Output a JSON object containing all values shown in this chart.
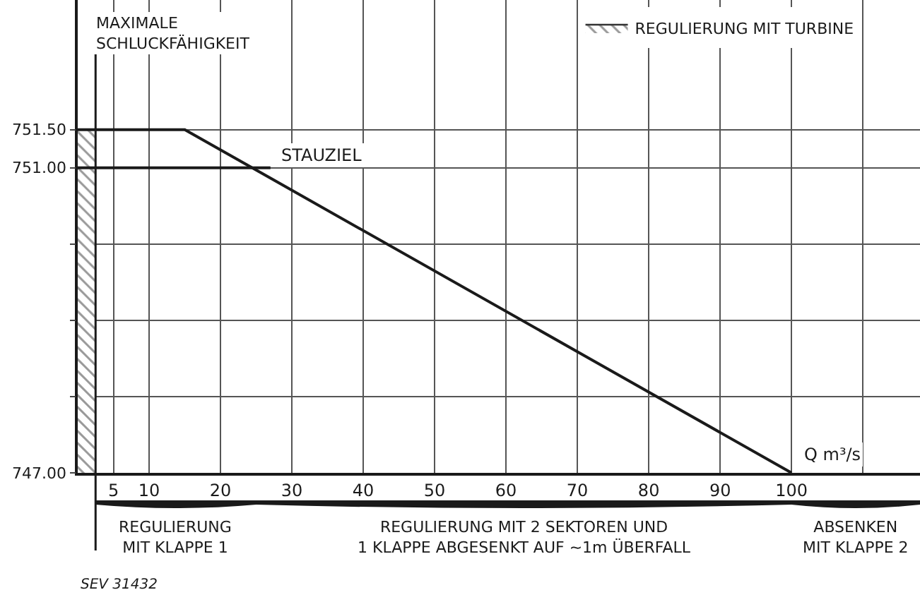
{
  "chart_data": {
    "type": "line",
    "xlabel": "Q m³/s",
    "series": [
      {
        "type": "area",
        "name": "REGULIERUNG MIT TURBINE",
        "x": [
          0,
          2.5
        ],
        "values": [
          751.5,
          751.5
        ],
        "color": "#333333"
      },
      {
        "x": [
          0,
          15,
          100
        ],
        "values": [
          751.5,
          751.5,
          747.0
        ],
        "color": "#1a1a1a"
      },
      {
        "name": "STAUZIEL",
        "x": [
          0,
          27
        ],
        "values": [
          751.0,
          751.0
        ],
        "color": "#1a1a1a"
      }
    ],
    "xlim": [
      0,
      118
    ],
    "ylim": [
      747,
      753.2
    ],
    "xticks": [
      5,
      10,
      20,
      30,
      40,
      50,
      60,
      70,
      80,
      90,
      100,
      {
        "value": 110,
        "label": null
      }
    ],
    "yticks": [
      {
        "value": 747,
        "label": "747.00"
      },
      {
        "value": 748,
        "label": null
      },
      {
        "value": 749,
        "label": null
      },
      {
        "value": 750,
        "label": null
      },
      {
        "value": 751,
        "label": "751.00"
      },
      {
        "value": 751.5,
        "label": "751.50"
      }
    ],
    "grid": true,
    "legend": "top right",
    "marker": "none",
    "line_style": "solid",
    "ref_lines": [
      {
        "axis": "x",
        "value": 2.5,
        "label": "MAXIMALE\nSCHLUCKFÄHIGKEIT",
        "color": "#1a1a1a"
      }
    ],
    "annotations": [
      "SEV 31432",
      "REGULIERUNG\nMIT KLAPPE 1",
      "REGULIERUNG MIT 2 SEKTOREN UND\n1 KLAPPE ABGESENKT AUF ~1m ÜBERFALL",
      "ABSENKEN\nMIT KLAPPE 2"
    ]
  }
}
